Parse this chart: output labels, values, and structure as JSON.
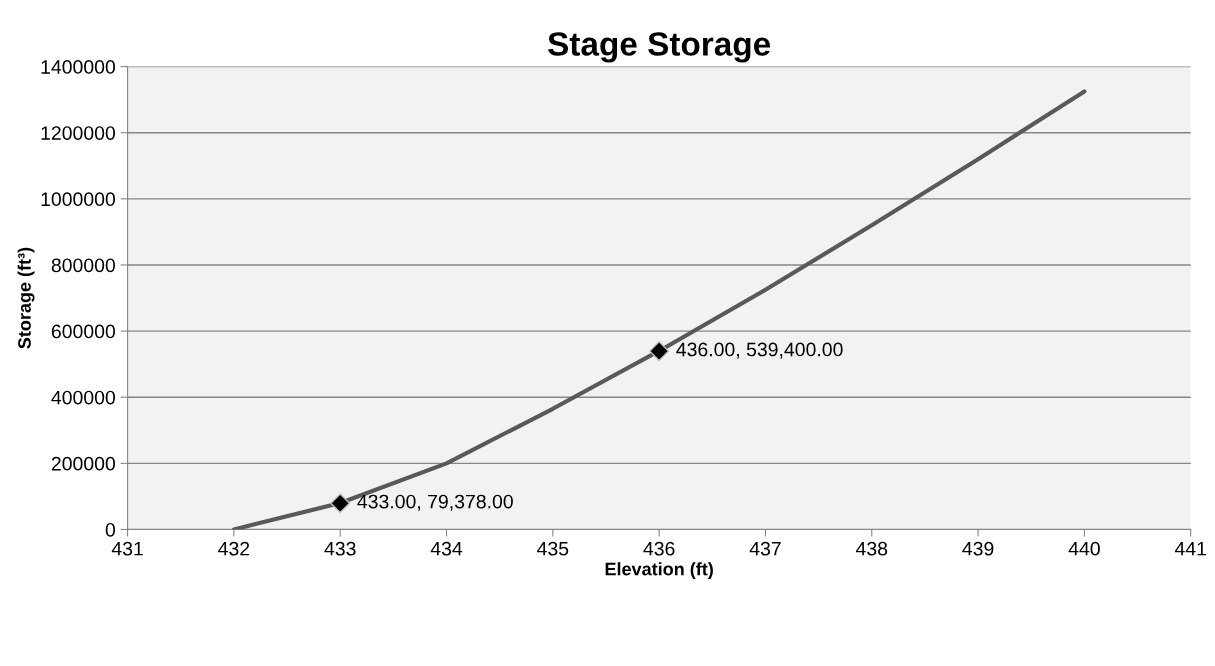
{
  "chart_data": {
    "type": "line",
    "title": "Stage Storage",
    "xlabel": "Elevation (ft)",
    "ylabel": "Storage (ft³)",
    "xlim": [
      431,
      441
    ],
    "xticks": [
      431,
      432,
      433,
      434,
      435,
      436,
      437,
      438,
      439,
      440,
      441
    ],
    "ylim": [
      0,
      1400000
    ],
    "yticks": [
      0,
      200000,
      400000,
      600000,
      800000,
      1000000,
      1200000,
      1400000
    ],
    "grid": "y",
    "legend": false,
    "series": [
      {
        "color": "#595959",
        "marker": "none",
        "x": [
          432,
          433,
          434,
          435,
          436,
          437,
          438,
          439,
          440
        ],
        "values": [
          0,
          80000,
          200000,
          365000,
          540000,
          725000,
          920000,
          1120000,
          1325000
        ]
      },
      {
        "type": "scatter",
        "color": "#000000",
        "marker": "diamond",
        "x": [
          433,
          436
        ],
        "values": [
          79378,
          539400
        ],
        "value_labels": [
          "433.00, 79,378.00",
          "436.00, 539,400.00"
        ]
      }
    ]
  }
}
